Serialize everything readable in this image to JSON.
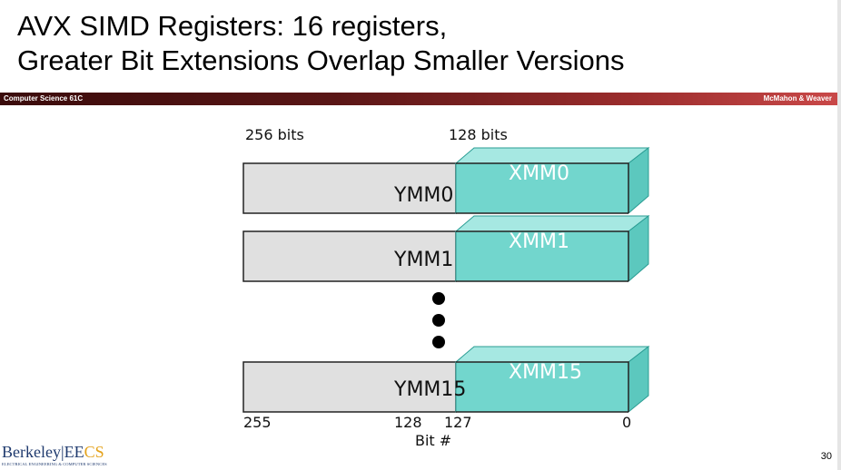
{
  "slide": {
    "title_line1": "AVX SIMD Registers:  16 registers,",
    "title_line2": "Greater Bit Extensions Overlap Smaller Versions",
    "course": "Computer Science 61C",
    "authors": "McMahon & Weaver",
    "page_number": "30"
  },
  "diagram": {
    "label_256": "256 bits",
    "label_128": "128 bits",
    "registers": [
      {
        "ymm": "YMM0",
        "xmm": "XMM0"
      },
      {
        "ymm": "YMM1",
        "xmm": "XMM1"
      },
      {
        "ymm": "YMM15",
        "xmm": "XMM15"
      }
    ],
    "bit_labels": {
      "b255": "255",
      "b128": "128",
      "b127": "127",
      "b0": "0"
    },
    "axis_label": "Bit #",
    "colors": {
      "ymm_fill": "#e0e0e0",
      "xmm_front": "#72d6cd",
      "xmm_top": "#a6e8e2",
      "xmm_side": "#5cc8be"
    }
  },
  "logo": {
    "berkeley": "Berkeley",
    "ee": "EE",
    "cs": "CS",
    "subtitle": "ELECTRICAL ENGINEERING & COMPUTER SCIENCES"
  }
}
